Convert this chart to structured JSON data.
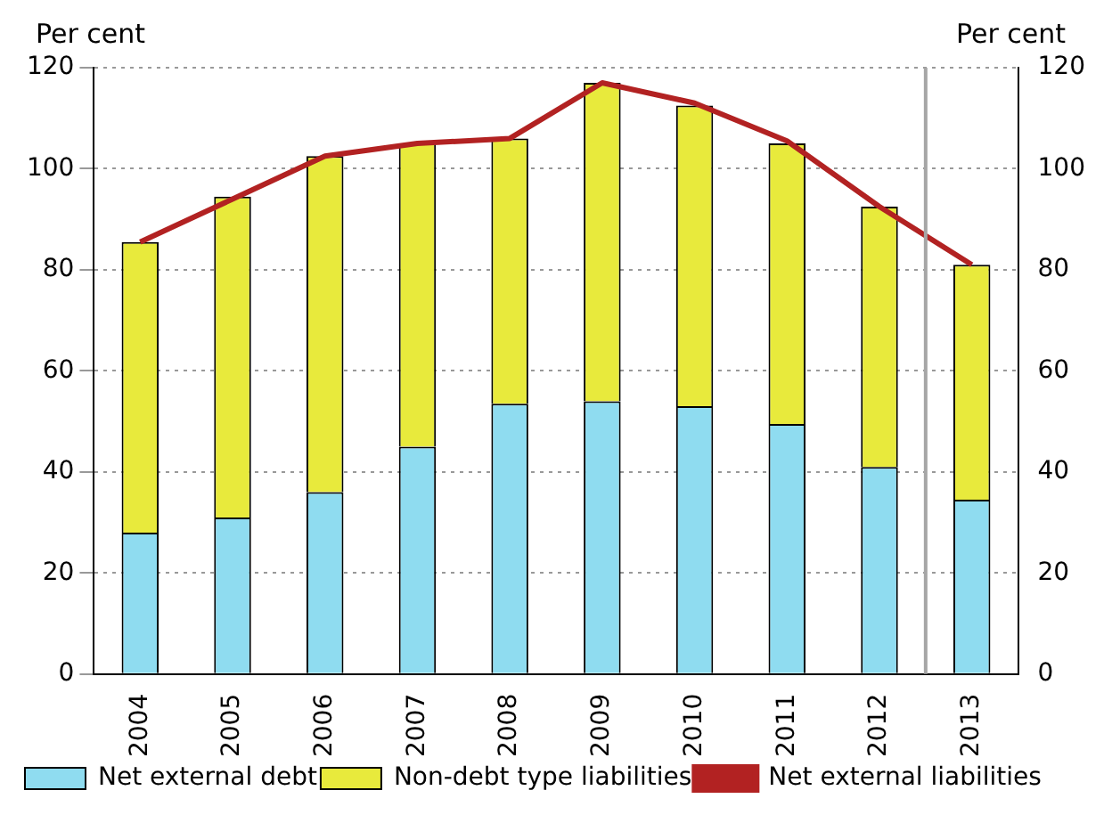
{
  "chart_data": {
    "type": "bar",
    "stacked": true,
    "ylabel": "Per cent",
    "y2label": "Per cent",
    "categories": [
      "2004",
      "2005",
      "2006",
      "2007",
      "2008",
      "2009",
      "2010",
      "2011",
      "2012",
      "2013"
    ],
    "series": [
      {
        "name": "Net external debt",
        "color": "#8fdcf0",
        "values": [
          28,
          31,
          36,
          45,
          53.5,
          54,
          53,
          49.5,
          41,
          34.5
        ]
      },
      {
        "name": "Non-debt type liabilities",
        "color": "#e8ea3c",
        "values": [
          57.5,
          63.5,
          66.5,
          60,
          52.5,
          63,
          59.5,
          55.5,
          51.5,
          46.5
        ]
      },
      {
        "name": "Net external liabilities",
        "type": "line",
        "color": "#b22222",
        "values": [
          85.5,
          94,
          102.5,
          105,
          106,
          117,
          113,
          105.5,
          92.5,
          81
        ]
      }
    ],
    "ylim": [
      0,
      120
    ],
    "yticks": [
      0,
      20,
      40,
      60,
      80,
      100,
      120
    ],
    "y2lim": [
      0,
      120
    ],
    "y2ticks": [
      0,
      20,
      40,
      60,
      80,
      100,
      120
    ],
    "grid": "y",
    "legend": "bottom left",
    "marker": "none",
    "ref_lines": [
      {
        "axis": "x",
        "value": "2013",
        "color": "#a6a6a6"
      }
    ]
  }
}
